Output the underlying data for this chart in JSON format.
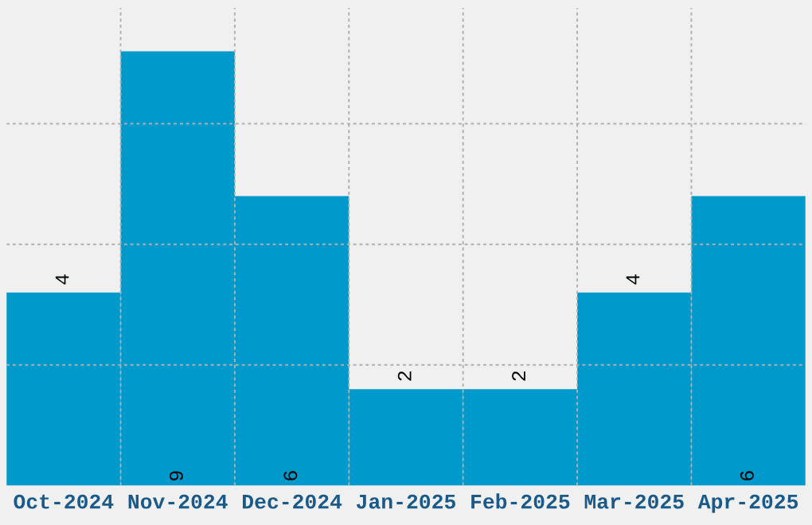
{
  "chart_data": {
    "type": "bar",
    "categories": [
      "Oct-2024",
      "Nov-2024",
      "Dec-2024",
      "Jan-2025",
      "Feb-2025",
      "Mar-2025",
      "Apr-2025"
    ],
    "values": [
      4,
      9,
      6,
      2,
      2,
      4,
      6
    ],
    "color": "#0099cc",
    "ylim": [
      0,
      9.9
    ],
    "yticks": [
      {
        "value": 2.5,
        "label": null
      },
      {
        "value": 5,
        "label": null
      },
      {
        "value": 7.5,
        "label": null
      }
    ],
    "tick_labels": "x",
    "grid": true,
    "data_labels": true
  }
}
